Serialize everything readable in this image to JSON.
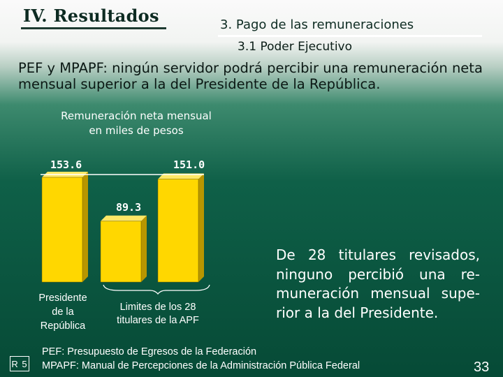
{
  "header": {
    "section_title": "IV. Resultados",
    "subsection": "3. Pago de las remuneraciones",
    "sub_subsection": "3.1 Poder Ejecutivo"
  },
  "statement": "PEF y MPAPF: ningún servidor podrá percibir una remuneración neta mensual superior a la del Presidente de la República.",
  "chart_data": {
    "type": "bar",
    "title": "Remuneración neta mensual en miles de pesos",
    "title_lines": [
      "Remuneración neta mensual",
      "en miles de pesos"
    ],
    "values": [
      153.6,
      89.3,
      151.0
    ],
    "value_labels": [
      "153.6",
      "89.3",
      "151.0"
    ],
    "bar_color": "#ffd700",
    "group_labels": [
      {
        "lines": [
          "Presidente",
          "de la",
          "República"
        ]
      },
      {
        "lines": [
          "Limites de los 28",
          "titulares de la APF"
        ]
      }
    ],
    "bracket_over": "Limites de los 28 titulares de la APF",
    "reference_line_at": 153.6
  },
  "conclusion": "De 28 titulares revisados, ninguno percibió una re­muneración mensual supe­rior a la del Presidente.",
  "footnotes": [
    "PEF: Presupuesto de Egresos de la Federación",
    "MPAPF: Manual de Percepciones de la Administración Pública Federal"
  ],
  "reference_code": "R 5",
  "page_number": "33"
}
